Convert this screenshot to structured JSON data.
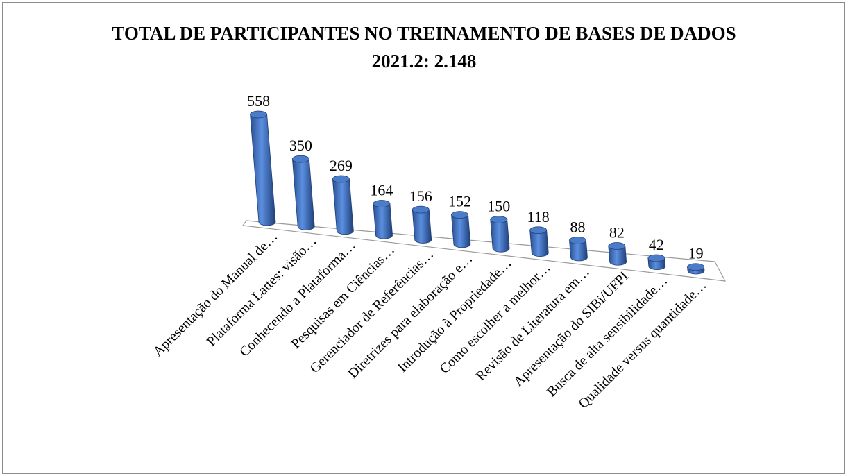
{
  "chart_data": {
    "type": "bar3d",
    "title": "TOTAL DE PARTICIPANTES NO TREINAMENTO DE BASES DE DADOS 2021.2: 2.148",
    "categories": [
      "Apresentação do Manual de…",
      "Plataforma Lattes: visão…",
      "Conhecendo a Plataforma…",
      "Pesquisas em Ciências…",
      "Gerenciador de Referências…",
      "Diretrizes para elaboração e…",
      "Introdução à Propriedade…",
      "Como escolher a melhor…",
      "Revisão de Literatura em…",
      "Apresentação do SIBi/UFPI",
      "Busca de alta sensibilidade…",
      "Qualidade versus quantidade…"
    ],
    "values": [
      558,
      350,
      269,
      164,
      156,
      152,
      150,
      118,
      88,
      82,
      42,
      19
    ],
    "color": "#4a7cc9"
  }
}
